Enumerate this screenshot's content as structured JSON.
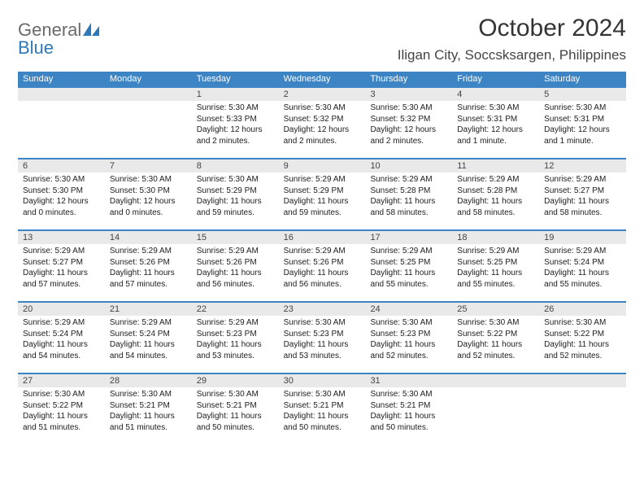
{
  "logo": {
    "part1": "General",
    "part2": "Blue"
  },
  "title": "October 2024",
  "location": "Iligan City, Soccsksargen, Philippines",
  "colors": {
    "header_bar": "#3d84c4",
    "daynum_bg": "#e9e9e9",
    "logo_gray": "#6a6a6a",
    "logo_blue": "#2f78b7",
    "text": "#202020",
    "background": "#ffffff",
    "week_divider": "#3d84c4"
  },
  "typography": {
    "title_fontsize": 30,
    "location_fontsize": 17,
    "dayhead_fontsize": 11,
    "daynum_fontsize": 11,
    "body_fontsize": 10
  },
  "day_headers": [
    "Sunday",
    "Monday",
    "Tuesday",
    "Wednesday",
    "Thursday",
    "Friday",
    "Saturday"
  ],
  "weeks": [
    [
      {
        "empty": true
      },
      {
        "empty": true
      },
      {
        "num": "1",
        "sunrise": "Sunrise: 5:30 AM",
        "sunset": "Sunset: 5:33 PM",
        "daylight": "Daylight: 12 hours and 2 minutes."
      },
      {
        "num": "2",
        "sunrise": "Sunrise: 5:30 AM",
        "sunset": "Sunset: 5:32 PM",
        "daylight": "Daylight: 12 hours and 2 minutes."
      },
      {
        "num": "3",
        "sunrise": "Sunrise: 5:30 AM",
        "sunset": "Sunset: 5:32 PM",
        "daylight": "Daylight: 12 hours and 2 minutes."
      },
      {
        "num": "4",
        "sunrise": "Sunrise: 5:30 AM",
        "sunset": "Sunset: 5:31 PM",
        "daylight": "Daylight: 12 hours and 1 minute."
      },
      {
        "num": "5",
        "sunrise": "Sunrise: 5:30 AM",
        "sunset": "Sunset: 5:31 PM",
        "daylight": "Daylight: 12 hours and 1 minute."
      }
    ],
    [
      {
        "num": "6",
        "sunrise": "Sunrise: 5:30 AM",
        "sunset": "Sunset: 5:30 PM",
        "daylight": "Daylight: 12 hours and 0 minutes."
      },
      {
        "num": "7",
        "sunrise": "Sunrise: 5:30 AM",
        "sunset": "Sunset: 5:30 PM",
        "daylight": "Daylight: 12 hours and 0 minutes."
      },
      {
        "num": "8",
        "sunrise": "Sunrise: 5:30 AM",
        "sunset": "Sunset: 5:29 PM",
        "daylight": "Daylight: 11 hours and 59 minutes."
      },
      {
        "num": "9",
        "sunrise": "Sunrise: 5:29 AM",
        "sunset": "Sunset: 5:29 PM",
        "daylight": "Daylight: 11 hours and 59 minutes."
      },
      {
        "num": "10",
        "sunrise": "Sunrise: 5:29 AM",
        "sunset": "Sunset: 5:28 PM",
        "daylight": "Daylight: 11 hours and 58 minutes."
      },
      {
        "num": "11",
        "sunrise": "Sunrise: 5:29 AM",
        "sunset": "Sunset: 5:28 PM",
        "daylight": "Daylight: 11 hours and 58 minutes."
      },
      {
        "num": "12",
        "sunrise": "Sunrise: 5:29 AM",
        "sunset": "Sunset: 5:27 PM",
        "daylight": "Daylight: 11 hours and 58 minutes."
      }
    ],
    [
      {
        "num": "13",
        "sunrise": "Sunrise: 5:29 AM",
        "sunset": "Sunset: 5:27 PM",
        "daylight": "Daylight: 11 hours and 57 minutes."
      },
      {
        "num": "14",
        "sunrise": "Sunrise: 5:29 AM",
        "sunset": "Sunset: 5:26 PM",
        "daylight": "Daylight: 11 hours and 57 minutes."
      },
      {
        "num": "15",
        "sunrise": "Sunrise: 5:29 AM",
        "sunset": "Sunset: 5:26 PM",
        "daylight": "Daylight: 11 hours and 56 minutes."
      },
      {
        "num": "16",
        "sunrise": "Sunrise: 5:29 AM",
        "sunset": "Sunset: 5:26 PM",
        "daylight": "Daylight: 11 hours and 56 minutes."
      },
      {
        "num": "17",
        "sunrise": "Sunrise: 5:29 AM",
        "sunset": "Sunset: 5:25 PM",
        "daylight": "Daylight: 11 hours and 55 minutes."
      },
      {
        "num": "18",
        "sunrise": "Sunrise: 5:29 AM",
        "sunset": "Sunset: 5:25 PM",
        "daylight": "Daylight: 11 hours and 55 minutes."
      },
      {
        "num": "19",
        "sunrise": "Sunrise: 5:29 AM",
        "sunset": "Sunset: 5:24 PM",
        "daylight": "Daylight: 11 hours and 55 minutes."
      }
    ],
    [
      {
        "num": "20",
        "sunrise": "Sunrise: 5:29 AM",
        "sunset": "Sunset: 5:24 PM",
        "daylight": "Daylight: 11 hours and 54 minutes."
      },
      {
        "num": "21",
        "sunrise": "Sunrise: 5:29 AM",
        "sunset": "Sunset: 5:24 PM",
        "daylight": "Daylight: 11 hours and 54 minutes."
      },
      {
        "num": "22",
        "sunrise": "Sunrise: 5:29 AM",
        "sunset": "Sunset: 5:23 PM",
        "daylight": "Daylight: 11 hours and 53 minutes."
      },
      {
        "num": "23",
        "sunrise": "Sunrise: 5:30 AM",
        "sunset": "Sunset: 5:23 PM",
        "daylight": "Daylight: 11 hours and 53 minutes."
      },
      {
        "num": "24",
        "sunrise": "Sunrise: 5:30 AM",
        "sunset": "Sunset: 5:23 PM",
        "daylight": "Daylight: 11 hours and 52 minutes."
      },
      {
        "num": "25",
        "sunrise": "Sunrise: 5:30 AM",
        "sunset": "Sunset: 5:22 PM",
        "daylight": "Daylight: 11 hours and 52 minutes."
      },
      {
        "num": "26",
        "sunrise": "Sunrise: 5:30 AM",
        "sunset": "Sunset: 5:22 PM",
        "daylight": "Daylight: 11 hours and 52 minutes."
      }
    ],
    [
      {
        "num": "27",
        "sunrise": "Sunrise: 5:30 AM",
        "sunset": "Sunset: 5:22 PM",
        "daylight": "Daylight: 11 hours and 51 minutes."
      },
      {
        "num": "28",
        "sunrise": "Sunrise: 5:30 AM",
        "sunset": "Sunset: 5:21 PM",
        "daylight": "Daylight: 11 hours and 51 minutes."
      },
      {
        "num": "29",
        "sunrise": "Sunrise: 5:30 AM",
        "sunset": "Sunset: 5:21 PM",
        "daylight": "Daylight: 11 hours and 50 minutes."
      },
      {
        "num": "30",
        "sunrise": "Sunrise: 5:30 AM",
        "sunset": "Sunset: 5:21 PM",
        "daylight": "Daylight: 11 hours and 50 minutes."
      },
      {
        "num": "31",
        "sunrise": "Sunrise: 5:30 AM",
        "sunset": "Sunset: 5:21 PM",
        "daylight": "Daylight: 11 hours and 50 minutes."
      },
      {
        "empty": true
      },
      {
        "empty": true
      }
    ]
  ]
}
